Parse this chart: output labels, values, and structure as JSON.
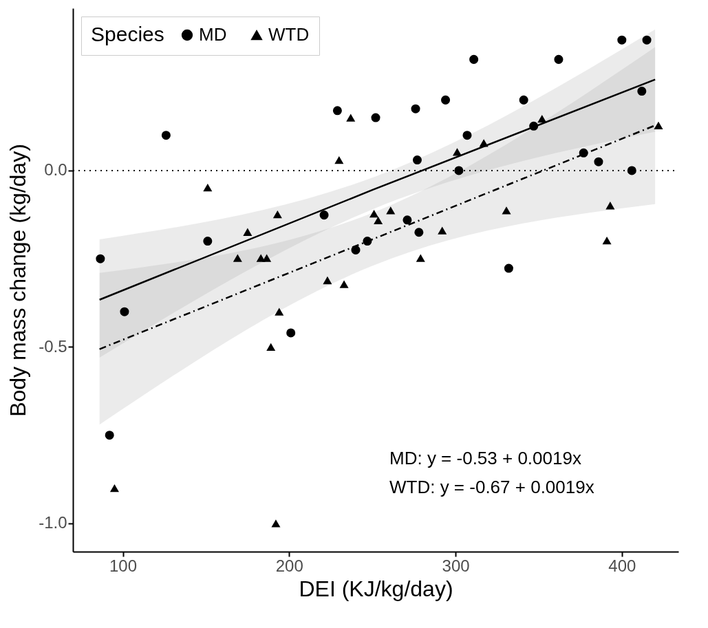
{
  "chart_data": {
    "type": "scatter",
    "xlabel": "DEI (KJ/kg/day)",
    "ylabel": "Body mass change (kg/day)",
    "legend_title": "Species",
    "legend": "top left",
    "grid": false,
    "xlim": [
      70,
      434
    ],
    "ylim": [
      -1.08,
      0.46
    ],
    "xticks": [
      100,
      200,
      300,
      400
    ],
    "yticks": [
      {
        "value": -1,
        "label": "-1.0"
      },
      {
        "value": -0.5,
        "label": "-0.5"
      },
      {
        "value": 0,
        "label": "0.0"
      }
    ],
    "series": [
      {
        "name": "MD",
        "marker": "circle",
        "color": "#000000",
        "x": [
          126,
          86.5,
          151,
          101,
          229,
          252,
          276,
          294,
          307,
          277,
          302,
          221,
          271,
          278,
          247,
          240,
          311,
          362,
          400,
          415,
          341,
          347,
          412,
          377,
          386,
          406,
          332,
          201,
          92
        ],
        "values": [
          0.1,
          -0.25,
          -0.2,
          -0.4,
          0.17,
          0.15,
          0.175,
          0.2,
          0.1,
          0.03,
          0.0,
          -0.126,
          -0.14,
          -0.175,
          -0.2,
          -0.225,
          0.315,
          0.315,
          0.37,
          0.37,
          0.2,
          0.126,
          0.225,
          0.05,
          0.025,
          0.0,
          -0.277,
          -0.46,
          -0.75
        ]
      },
      {
        "name": "WTD",
        "marker": "triangle",
        "color": "#000000",
        "x": [
          151,
          175,
          169,
          183,
          186.5,
          193,
          237,
          230,
          251,
          253.5,
          261,
          301,
          292,
          279,
          223,
          233,
          194,
          317,
          352,
          422,
          330.6,
          393,
          391,
          189,
          95,
          192
        ],
        "values": [
          -0.048,
          -0.174,
          -0.248,
          -0.248,
          -0.248,
          -0.124,
          0.15,
          0.03,
          -0.122,
          -0.141,
          -0.113,
          0.053,
          -0.17,
          -0.248,
          -0.311,
          -0.322,
          -0.4,
          0.078,
          0.147,
          0.128,
          -0.113,
          -0.099,
          -0.198,
          -0.5,
          -0.9,
          -1.0
        ]
      },
      {
        "type": "line",
        "line_style": "solid",
        "color": "#000000",
        "x": [
          86,
          250,
          420
        ],
        "values": [
          -0.366,
          -0.055,
          0.258
        ],
        "lower": [
          -0.53,
          -0.11,
          0.11
        ],
        "upper": [
          -0.195,
          -0.02,
          0.4
        ]
      },
      {
        "type": "line",
        "line_style": "dashed",
        "color": "#000000",
        "x": [
          86,
          250,
          420
        ],
        "values": [
          -0.506,
          -0.195,
          0.128
        ],
        "lower": [
          -0.72,
          -0.27,
          -0.095
        ],
        "upper": [
          -0.29,
          -0.12,
          0.35
        ]
      }
    ],
    "ref_lines": [
      {
        "axis": "y",
        "value": 0,
        "line_style": "dotted",
        "color": "#000000"
      }
    ],
    "annotations": [
      "MD: y = -0.53 + 0.0019x",
      "WTD: y = -0.67 + 0.0019x"
    ]
  }
}
